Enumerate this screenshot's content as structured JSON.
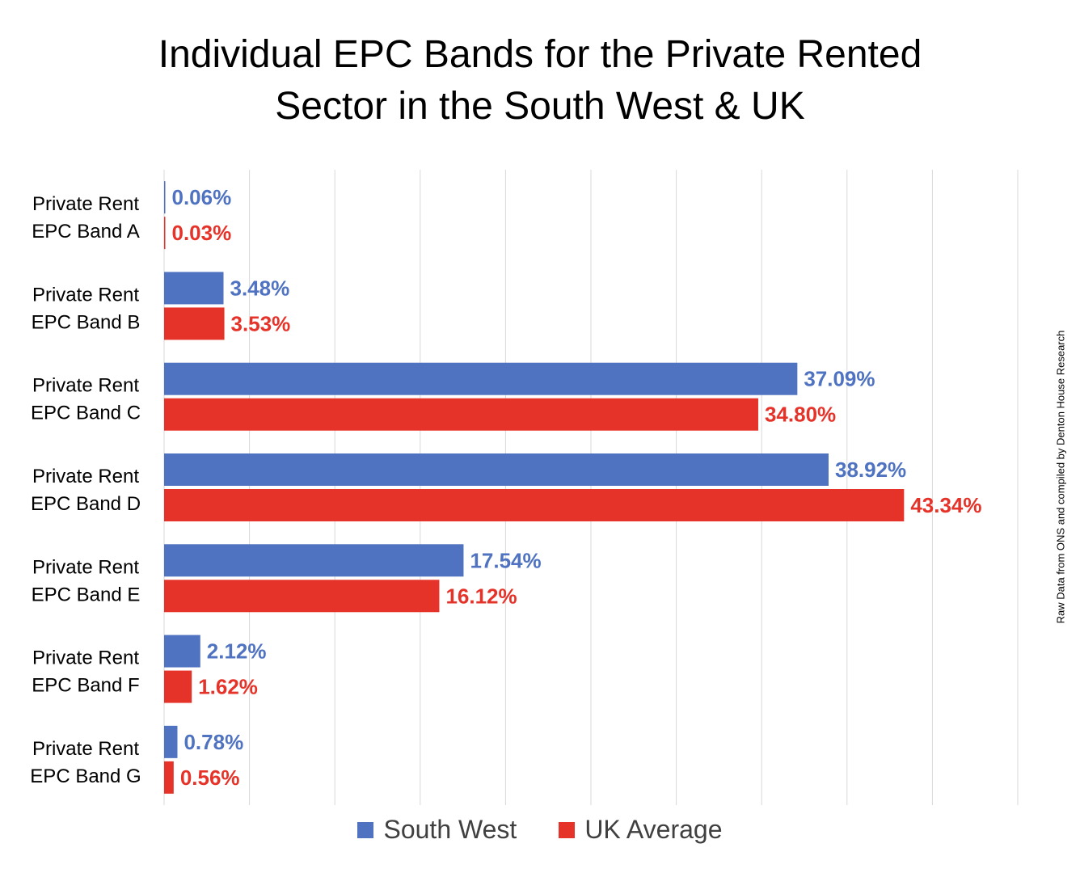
{
  "chart_data": {
    "type": "bar",
    "orientation": "horizontal",
    "title": "Individual EPC Bands for the Private Rented Sector in the South West & UK",
    "title_lines": [
      "Individual EPC Bands for the Private Rented",
      "Sector in the South West & UK"
    ],
    "categories": [
      [
        "Private Rent",
        "EPC Band A"
      ],
      [
        "Private Rent",
        "EPC Band B"
      ],
      [
        "Private Rent",
        "EPC Band C"
      ],
      [
        "Private Rent",
        "EPC Band D"
      ],
      [
        "Private Rent",
        "EPC Band E"
      ],
      [
        "Private Rent",
        "EPC Band F"
      ],
      [
        "Private Rent",
        "EPC Band G"
      ]
    ],
    "series": [
      {
        "name": "South West",
        "color": "#4f73c1",
        "values": [
          0.06,
          3.48,
          37.09,
          38.92,
          17.54,
          2.12,
          0.78
        ],
        "labels": [
          "0.06%",
          "3.48%",
          "37.09%",
          "38.92%",
          "17.54%",
          "2.12%",
          "0.78%"
        ]
      },
      {
        "name": "UK Average",
        "color": "#e63329",
        "values": [
          0.03,
          3.53,
          34.8,
          43.34,
          16.12,
          1.62,
          0.56
        ],
        "labels": [
          "0.03%",
          "3.53%",
          "34.80%",
          "43.34%",
          "16.12%",
          "1.62%",
          "0.56%"
        ]
      }
    ],
    "xlim": [
      0,
      50
    ],
    "grid": true,
    "legend_position": "bottom",
    "source_note": "Raw Data from ONS and compiled by Denton House Research"
  }
}
